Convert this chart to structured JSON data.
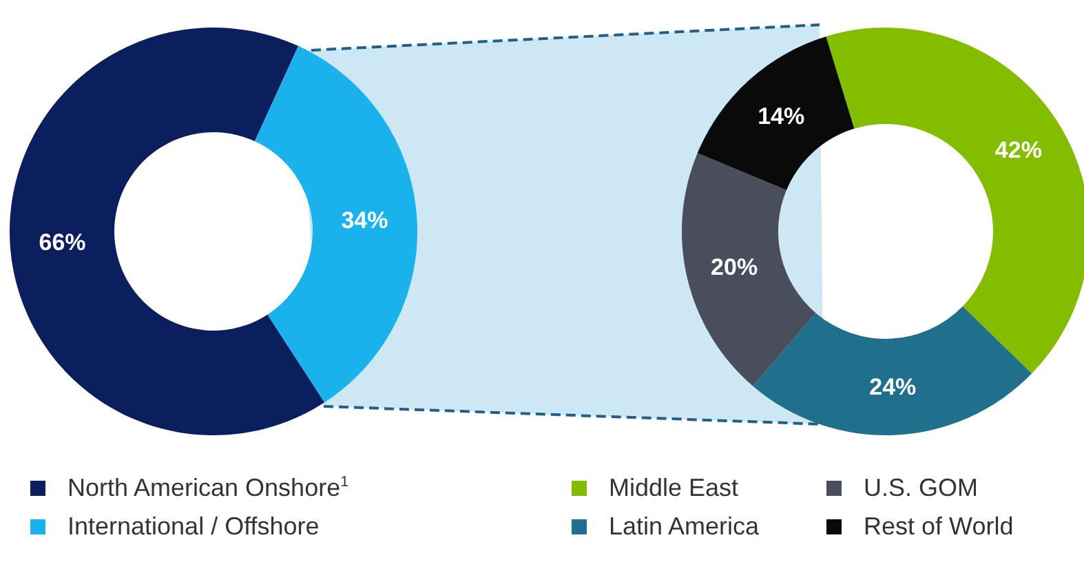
{
  "chart_data": [
    {
      "type": "donut",
      "categories": [
        "North American Onshore$^{1}$",
        "International / Offshore"
      ],
      "values": [
        66,
        34
      ],
      "colors": [
        "#0b1f5e",
        "#1ab2ec"
      ],
      "value_labels": [
        "66%",
        "34%"
      ],
      "legend": "bottom"
    },
    {
      "type": "donut",
      "categories": [
        "Middle East",
        "Latin America",
        "U.S. GOM",
        "Rest of World"
      ],
      "values": [
        42,
        24,
        20,
        14
      ],
      "colors": [
        "#84bd00",
        "#1f6f8d",
        "#4a4e5c",
        "#0a0a0a"
      ],
      "value_labels": [
        "42%",
        "24%",
        "20%",
        "14%"
      ],
      "legend": "bottom"
    }
  ]
}
